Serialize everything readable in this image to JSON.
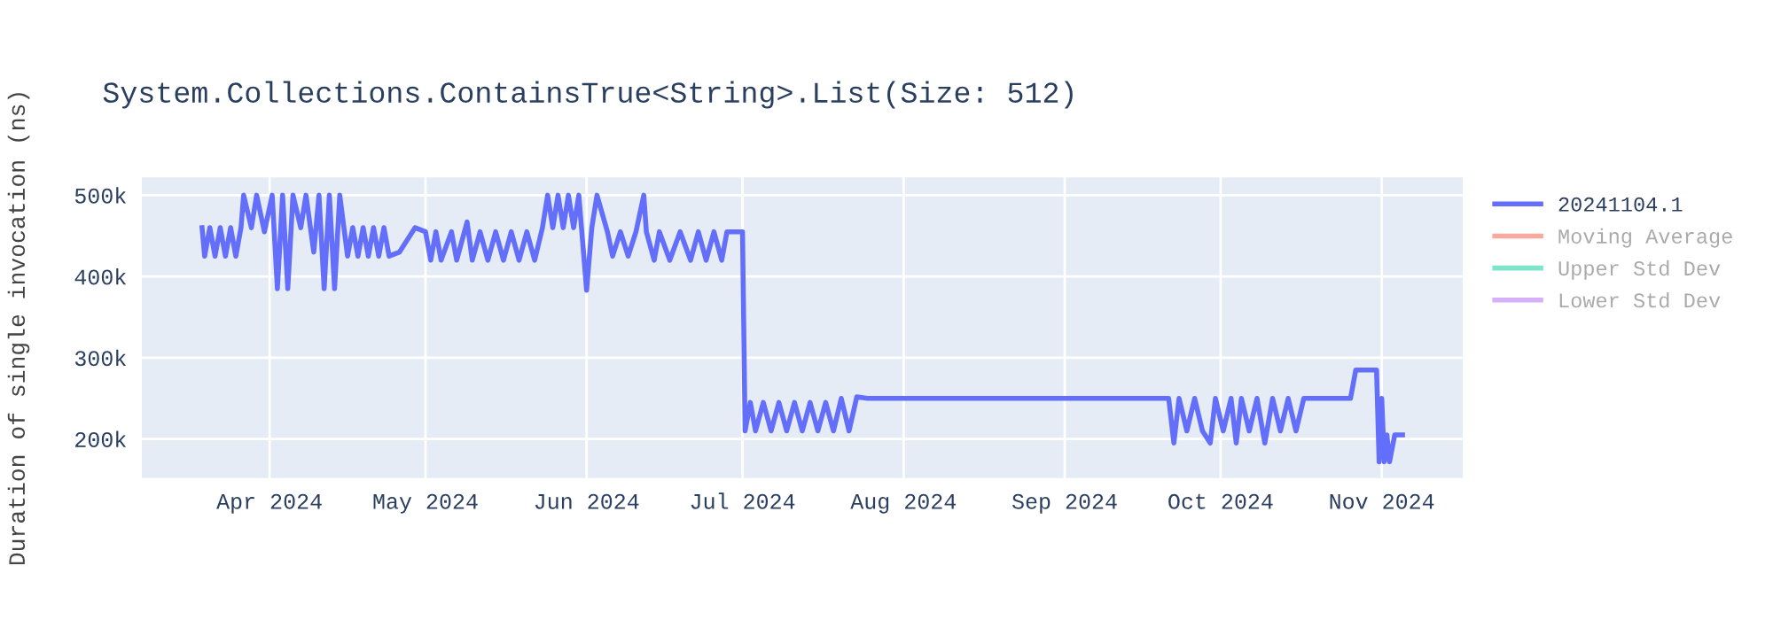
{
  "chart_data": {
    "type": "line",
    "title": "System.Collections.ContainsTrue<String>.List(Size: 512)",
    "ylabel": "Duration of single invocation (ns)",
    "xlim": [
      "2024-03-07T10:00",
      "2024-11-16T14:00"
    ],
    "ylim": [
      152000,
      522000
    ],
    "xticks": [
      {
        "value": "2024-04-01",
        "label": "Apr 2024"
      },
      {
        "value": "2024-05-01",
        "label": "May 2024"
      },
      {
        "value": "2024-06-01",
        "label": "Jun 2024"
      },
      {
        "value": "2024-07-01",
        "label": "Jul 2024"
      },
      {
        "value": "2024-08-01",
        "label": "Aug 2024"
      },
      {
        "value": "2024-09-01",
        "label": "Sep 2024"
      },
      {
        "value": "2024-10-01",
        "label": "Oct 2024"
      },
      {
        "value": "2024-11-01",
        "label": "Nov 2024"
      }
    ],
    "yticks": [
      {
        "value": 200000,
        "label": "200k"
      },
      {
        "value": 300000,
        "label": "300k"
      },
      {
        "value": 400000,
        "label": "400k"
      },
      {
        "value": 500000,
        "label": "500k"
      }
    ],
    "grid": true,
    "legend": "top right",
    "marker": "none",
    "line_style": "solid",
    "series": [
      {
        "name": "20241104.1",
        "color": "#636efa",
        "x": [
          "2024-03-19",
          "2024-03-19T12:00",
          "2024-03-20T12:00",
          "2024-03-21T12:00",
          "2024-03-22T12:00",
          "2024-03-23T12:00",
          "2024-03-24T12:00",
          "2024-03-25T12:00",
          "2024-03-26T12:00",
          "2024-03-27",
          "2024-03-28T12:00",
          "2024-03-29T12:00",
          "2024-03-31",
          "2024-04-01T12:00",
          "2024-04-02T12:00",
          "2024-04-03T12:00",
          "2024-04-04T12:00",
          "2024-04-05T12:00",
          "2024-04-07",
          "2024-04-08",
          "2024-04-09T12:00",
          "2024-04-10T12:00",
          "2024-04-11T12:00",
          "2024-04-12T12:00",
          "2024-04-13T12:00",
          "2024-04-14T12:00",
          "2024-04-16",
          "2024-04-17",
          "2024-04-18",
          "2024-04-19",
          "2024-04-20",
          "2024-04-21",
          "2024-04-22",
          "2024-04-23",
          "2024-04-24",
          "2024-04-26",
          "2024-04-29",
          "2024-05-01",
          "2024-05-02",
          "2024-05-03",
          "2024-05-04",
          "2024-05-06",
          "2024-05-07",
          "2024-05-09",
          "2024-05-10",
          "2024-05-11T12:00",
          "2024-05-13",
          "2024-05-14T12:00",
          "2024-05-16",
          "2024-05-17T12:00",
          "2024-05-19",
          "2024-05-20T12:00",
          "2024-05-22",
          "2024-05-23T12:00",
          "2024-05-24T12:00",
          "2024-05-25T12:00",
          "2024-05-26T12:00",
          "2024-05-27T12:00",
          "2024-05-28T12:00",
          "2024-05-29T12:00",
          "2024-05-30T12:00",
          "2024-06-01",
          "2024-06-02",
          "2024-06-03",
          "2024-06-05",
          "2024-06-06",
          "2024-06-07T12:00",
          "2024-06-09",
          "2024-06-10T12:00",
          "2024-06-12",
          "2024-06-12T12:00",
          "2024-06-14",
          "2024-06-15",
          "2024-06-17",
          "2024-06-19",
          "2024-06-21",
          "2024-06-22T12:00",
          "2024-06-24",
          "2024-06-25T12:00",
          "2024-06-27",
          "2024-06-28",
          "2024-07-01",
          "2024-07-01T12:00",
          "2024-07-02T12:00",
          "2024-07-03T12:00",
          "2024-07-05",
          "2024-07-06T12:00",
          "2024-07-08",
          "2024-07-09T12:00",
          "2024-07-11",
          "2024-07-12T12:00",
          "2024-07-14",
          "2024-07-15T12:00",
          "2024-07-17",
          "2024-07-18T12:00",
          "2024-07-20",
          "2024-07-21T12:00",
          "2024-07-23",
          "2024-07-25",
          "2024-09-21",
          "2024-09-22",
          "2024-09-23",
          "2024-09-24T12:00",
          "2024-09-26",
          "2024-09-27T12:00",
          "2024-09-29",
          "2024-09-30",
          "2024-10-01T12:00",
          "2024-10-03",
          "2024-10-04",
          "2024-10-05",
          "2024-10-06T12:00",
          "2024-10-08",
          "2024-10-09T12:00",
          "2024-10-11",
          "2024-10-12T12:00",
          "2024-10-14",
          "2024-10-15T12:00",
          "2024-10-17",
          "2024-10-26",
          "2024-10-27",
          "2024-10-31",
          "2024-10-31T12:00",
          "2024-11-01",
          "2024-11-01T12:00",
          "2024-11-02",
          "2024-11-02T12:00",
          "2024-11-03T12:00",
          "2024-11-05"
        ],
        "values": [
          460000,
          425000,
          460000,
          425000,
          460000,
          425000,
          460000,
          425000,
          460000,
          500000,
          460000,
          500000,
          455000,
          500000,
          385000,
          500000,
          385000,
          500000,
          460000,
          500000,
          430000,
          500000,
          385000,
          500000,
          385000,
          500000,
          425000,
          460000,
          425000,
          460000,
          425000,
          460000,
          425000,
          460000,
          425000,
          430000,
          460000,
          455000,
          420000,
          455000,
          420000,
          455000,
          420000,
          467000,
          420000,
          455000,
          420000,
          455000,
          420000,
          455000,
          420000,
          455000,
          420000,
          460000,
          500000,
          460000,
          500000,
          460000,
          500000,
          460000,
          500000,
          383000,
          460000,
          500000,
          455000,
          425000,
          455000,
          425000,
          455000,
          500000,
          455000,
          420000,
          455000,
          420000,
          455000,
          420000,
          455000,
          420000,
          455000,
          420000,
          455000,
          455000,
          210000,
          245000,
          210000,
          245000,
          210000,
          245000,
          210000,
          245000,
          210000,
          245000,
          210000,
          245000,
          210000,
          250000,
          210000,
          252000,
          250000,
          250000,
          195000,
          250000,
          210000,
          250000,
          210000,
          195000,
          250000,
          210000,
          250000,
          195000,
          250000,
          210000,
          250000,
          195000,
          250000,
          210000,
          250000,
          210000,
          250000,
          250000,
          285000,
          285000,
          172000,
          250000,
          172000,
          205000,
          172000,
          205000,
          205000
        ]
      },
      {
        "name": "Moving Average",
        "color": "#ef553b"
      },
      {
        "name": "Upper Std Dev",
        "color": "#00cc96"
      },
      {
        "name": "Lower Std Dev",
        "color": "#ab63fa"
      }
    ]
  }
}
